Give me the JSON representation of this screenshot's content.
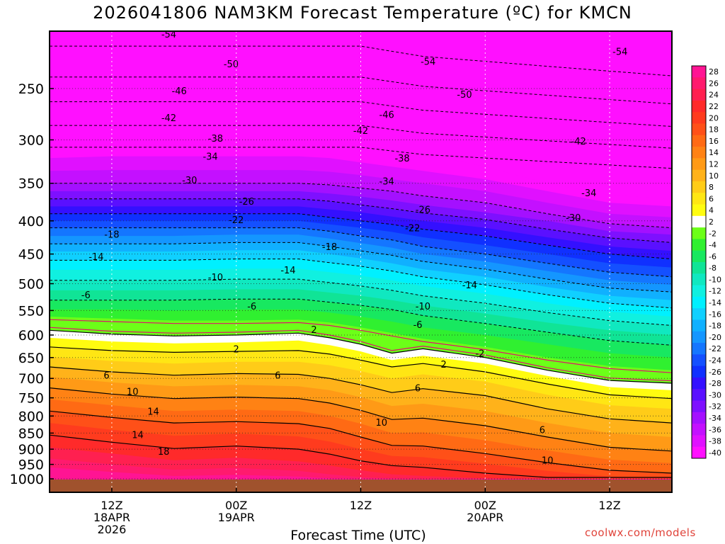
{
  "title": "2026041806 NAM3KM Forecast Temperature (ºC) for KMCN",
  "credit": "coolwx.com/models",
  "chart_data": {
    "type": "heatmap",
    "title": "2026041806 NAM3KM Forecast Temperature (ºC) for KMCN",
    "xlabel": "Forecast Time (UTC)",
    "ylabel": "",
    "y_scale": "log-pressure",
    "ylim": [
      1000,
      200
    ],
    "y_ticks": [
      "250",
      "300",
      "350",
      "400",
      "450",
      "500",
      "550",
      "600",
      "650",
      "700",
      "750",
      "800",
      "850",
      "900",
      "950",
      "1000"
    ],
    "x_ticks": [
      {
        "hour": 6,
        "lines": [
          "12Z",
          "18APR",
          "2026"
        ]
      },
      {
        "hour": 18,
        "lines": [
          "00Z",
          "19APR"
        ]
      },
      {
        "hour": 30,
        "lines": [
          "12Z"
        ]
      },
      {
        "hour": 42,
        "lines": [
          "00Z",
          "20APR"
        ]
      },
      {
        "hour": 54,
        "lines": [
          "12Z"
        ]
      }
    ],
    "colorbar_labels": [
      "28",
      "26",
      "24",
      "22",
      "20",
      "18",
      "16",
      "14",
      "12",
      "10",
      "8",
      "6",
      "4",
      "2",
      "-2",
      "-4",
      "-6",
      "-8",
      "-10",
      "-12",
      "-14",
      "-16",
      "-18",
      "-20",
      "-22",
      "-24",
      "-26",
      "-28",
      "-30",
      "-32",
      "-34",
      "-36",
      "-38",
      "-40"
    ],
    "colors": {
      "28": "#ff1493",
      "26": "#ff1a6e",
      "24": "#ff2050",
      "22": "#ff2a2a",
      "20": "#ff3b1e",
      "18": "#ff5018",
      "16": "#ff6a14",
      "14": "#ff8214",
      "12": "#ff9a16",
      "10": "#ffb21a",
      "8": "#ffcc18",
      "6": "#ffe614",
      "4": "#fffc10",
      "2": "#ffffff",
      "-2": "#6cff18",
      "-4": "#30f030",
      "-6": "#18e860",
      "-8": "#10e496",
      "-10": "#10e8c0",
      "-12": "#10f0e0",
      "-14": "#00f0ff",
      "-16": "#10d0ff",
      "-18": "#10b0ff",
      "-20": "#1496ff",
      "-22": "#1476ff",
      "-24": "#1450ff",
      "-26": "#1030ff",
      "-28": "#3410ff",
      "-30": "#5a10ff",
      "-32": "#7e10ff",
      "-34": "#a410ff",
      "-36": "#c410ff",
      "-38": "#e010ff",
      "-40": "#ff10ff",
      "ground": "#a0522d"
    },
    "contour_labels": [
      {
        "text": "-54",
        "t": 11.5,
        "p": 206
      },
      {
        "text": "-50",
        "t": 17.5,
        "p": 229
      },
      {
        "text": "-46",
        "t": 12.5,
        "p": 252
      },
      {
        "text": "-42",
        "t": 11.5,
        "p": 277
      },
      {
        "text": "-38",
        "t": 16,
        "p": 298
      },
      {
        "text": "-34",
        "t": 15.5,
        "p": 318
      },
      {
        "text": "-30",
        "t": 13.5,
        "p": 346
      },
      {
        "text": "-26",
        "t": 19,
        "p": 373
      },
      {
        "text": "-22",
        "t": 18,
        "p": 398
      },
      {
        "text": "-18",
        "t": 6,
        "p": 419
      },
      {
        "text": "-14",
        "t": 4.5,
        "p": 454
      },
      {
        "text": "-10",
        "t": 16,
        "p": 488
      },
      {
        "text": "-6",
        "t": 3.5,
        "p": 520
      },
      {
        "text": "-6",
        "t": 19.5,
        "p": 541
      },
      {
        "text": "2",
        "t": 25.5,
        "p": 588
      },
      {
        "text": "2",
        "t": 18,
        "p": 630
      },
      {
        "text": "6",
        "t": 5.5,
        "p": 692
      },
      {
        "text": "6",
        "t": 22,
        "p": 692
      },
      {
        "text": "10",
        "t": 8,
        "p": 733
      },
      {
        "text": "14",
        "t": 10,
        "p": 786
      },
      {
        "text": "14",
        "t": 8.5,
        "p": 854
      },
      {
        "text": "18",
        "t": 11,
        "p": 906
      },
      {
        "text": "-18",
        "t": 27,
        "p": 438
      },
      {
        "text": "-14",
        "t": 23,
        "p": 476
      },
      {
        "text": "-54",
        "t": 36.5,
        "p": 227
      },
      {
        "text": "-50",
        "t": 40,
        "p": 255
      },
      {
        "text": "-46",
        "t": 32.5,
        "p": 274
      },
      {
        "text": "-42",
        "t": 30,
        "p": 290
      },
      {
        "text": "-38",
        "t": 34,
        "p": 320
      },
      {
        "text": "-34",
        "t": 32.5,
        "p": 347
      },
      {
        "text": "-26",
        "t": 36,
        "p": 384
      },
      {
        "text": "-22",
        "t": 35,
        "p": 410
      },
      {
        "text": "-14",
        "t": 40.5,
        "p": 502
      },
      {
        "text": "-10",
        "t": 36,
        "p": 541
      },
      {
        "text": "-6",
        "t": 35.5,
        "p": 578
      },
      {
        "text": "2",
        "t": 38,
        "p": 665
      },
      {
        "text": "-2",
        "t": 41.5,
        "p": 640
      },
      {
        "text": "6",
        "t": 35.5,
        "p": 724
      },
      {
        "text": "10",
        "t": 32,
        "p": 818
      },
      {
        "text": "-54",
        "t": 55,
        "p": 219
      },
      {
        "text": "-42",
        "t": 51,
        "p": 301
      },
      {
        "text": "-34",
        "t": 52,
        "p": 362
      },
      {
        "text": "-30",
        "t": 50.5,
        "p": 395
      },
      {
        "text": "6",
        "t": 47.5,
        "p": 840
      },
      {
        "text": "10",
        "t": 48,
        "p": 935
      }
    ]
  }
}
